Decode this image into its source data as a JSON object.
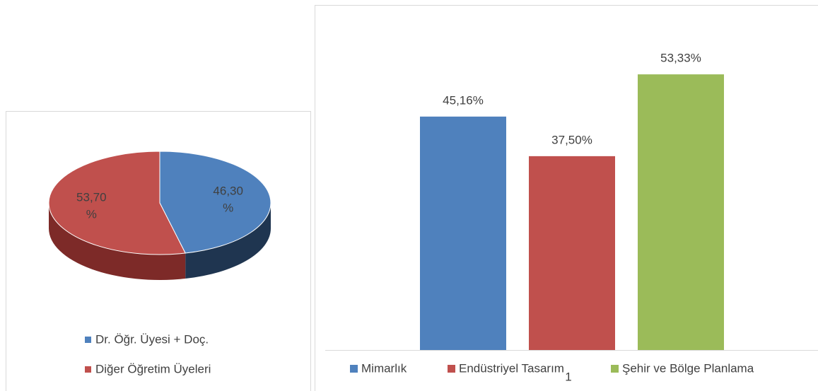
{
  "chart_data": [
    {
      "type": "pie",
      "series": [
        {
          "name": "Dr. Öğr. Üyesi + Doç.",
          "color": "#4f81bd",
          "side_color": "#1f3550",
          "values": [
            46.3
          ],
          "value_labels": [
            "46,30%"
          ]
        },
        {
          "name": "Diğer Öğretim Üyeleri",
          "color": "#c0504d",
          "side_color": "#7d2a28",
          "values": [
            53.7
          ],
          "value_labels": [
            "53,70%"
          ]
        }
      ]
    },
    {
      "type": "bar",
      "ylim": [
        0,
        60
      ],
      "series": [
        {
          "name": "Mimarlık",
          "color": "#4f81bd",
          "values": [
            45.16
          ],
          "value_labels": [
            "45,16%"
          ]
        },
        {
          "name": "Endüstriyel Tasarım",
          "color": "#c0504d",
          "values": [
            37.5
          ],
          "value_labels": [
            "37,50%"
          ]
        },
        {
          "name": "Şehir ve Bölge Planlama",
          "color": "#9bbb59",
          "values": [
            53.33
          ],
          "value_labels": [
            "53,33%"
          ]
        }
      ]
    }
  ],
  "page_number": "1"
}
